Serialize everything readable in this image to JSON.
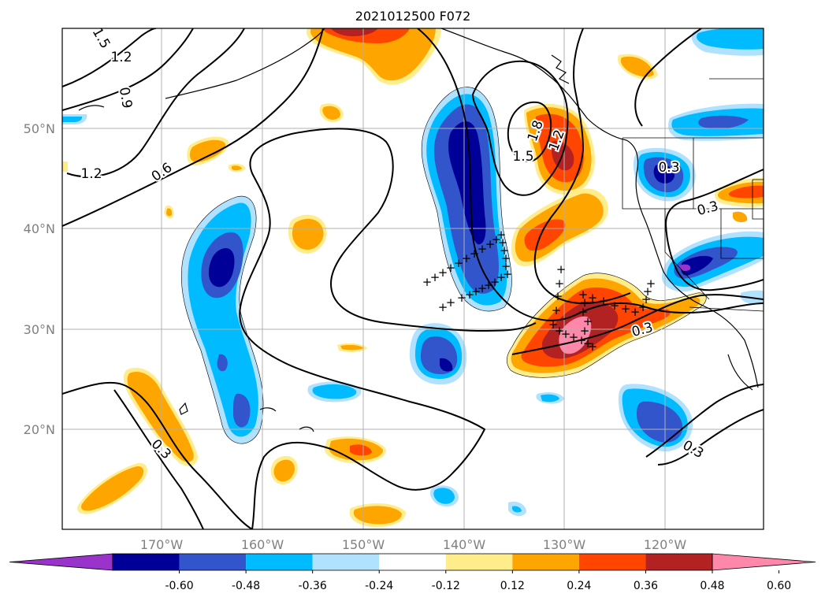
{
  "title": "2021012500 F072",
  "lat_labels": [
    "20°N",
    "30°N",
    "40°N",
    "50°N"
  ],
  "lon_labels": [
    "170°W",
    "160°W",
    "150°W",
    "140°W",
    "130°W",
    "120°W"
  ],
  "colorbar": {
    "ticks": [
      "-0.60",
      "-0.48",
      "-0.36",
      "-0.24",
      "-0.12",
      "0.12",
      "0.24",
      "0.36",
      "0.48",
      "0.60"
    ],
    "colors": [
      "#9933cc",
      "#000099",
      "#3355cc",
      "#00bbff",
      "#b0e2ff",
      "#ffffff",
      "#ffec8b",
      "#ffa500",
      "#ff4500",
      "#b22222",
      "#ff88aa"
    ]
  },
  "contour_labels": [
    "1.5",
    "1.2",
    "0.9",
    "1.2",
    "0.6",
    "1.5",
    "1.8",
    "1.2",
    "0.3",
    "0.3",
    "0.3",
    "0.3",
    "0.3"
  ],
  "palette": {
    "dark_blue": "#000099",
    "mid_blue": "#3355cc",
    "cyan": "#00bbff",
    "light_blue": "#b0e2ff",
    "yellow": "#ffec8b",
    "orange": "#ffa500",
    "red_orange": "#ff4500",
    "dark_red": "#b22222",
    "pink": "#ff88aa",
    "purple": "#9933cc"
  }
}
